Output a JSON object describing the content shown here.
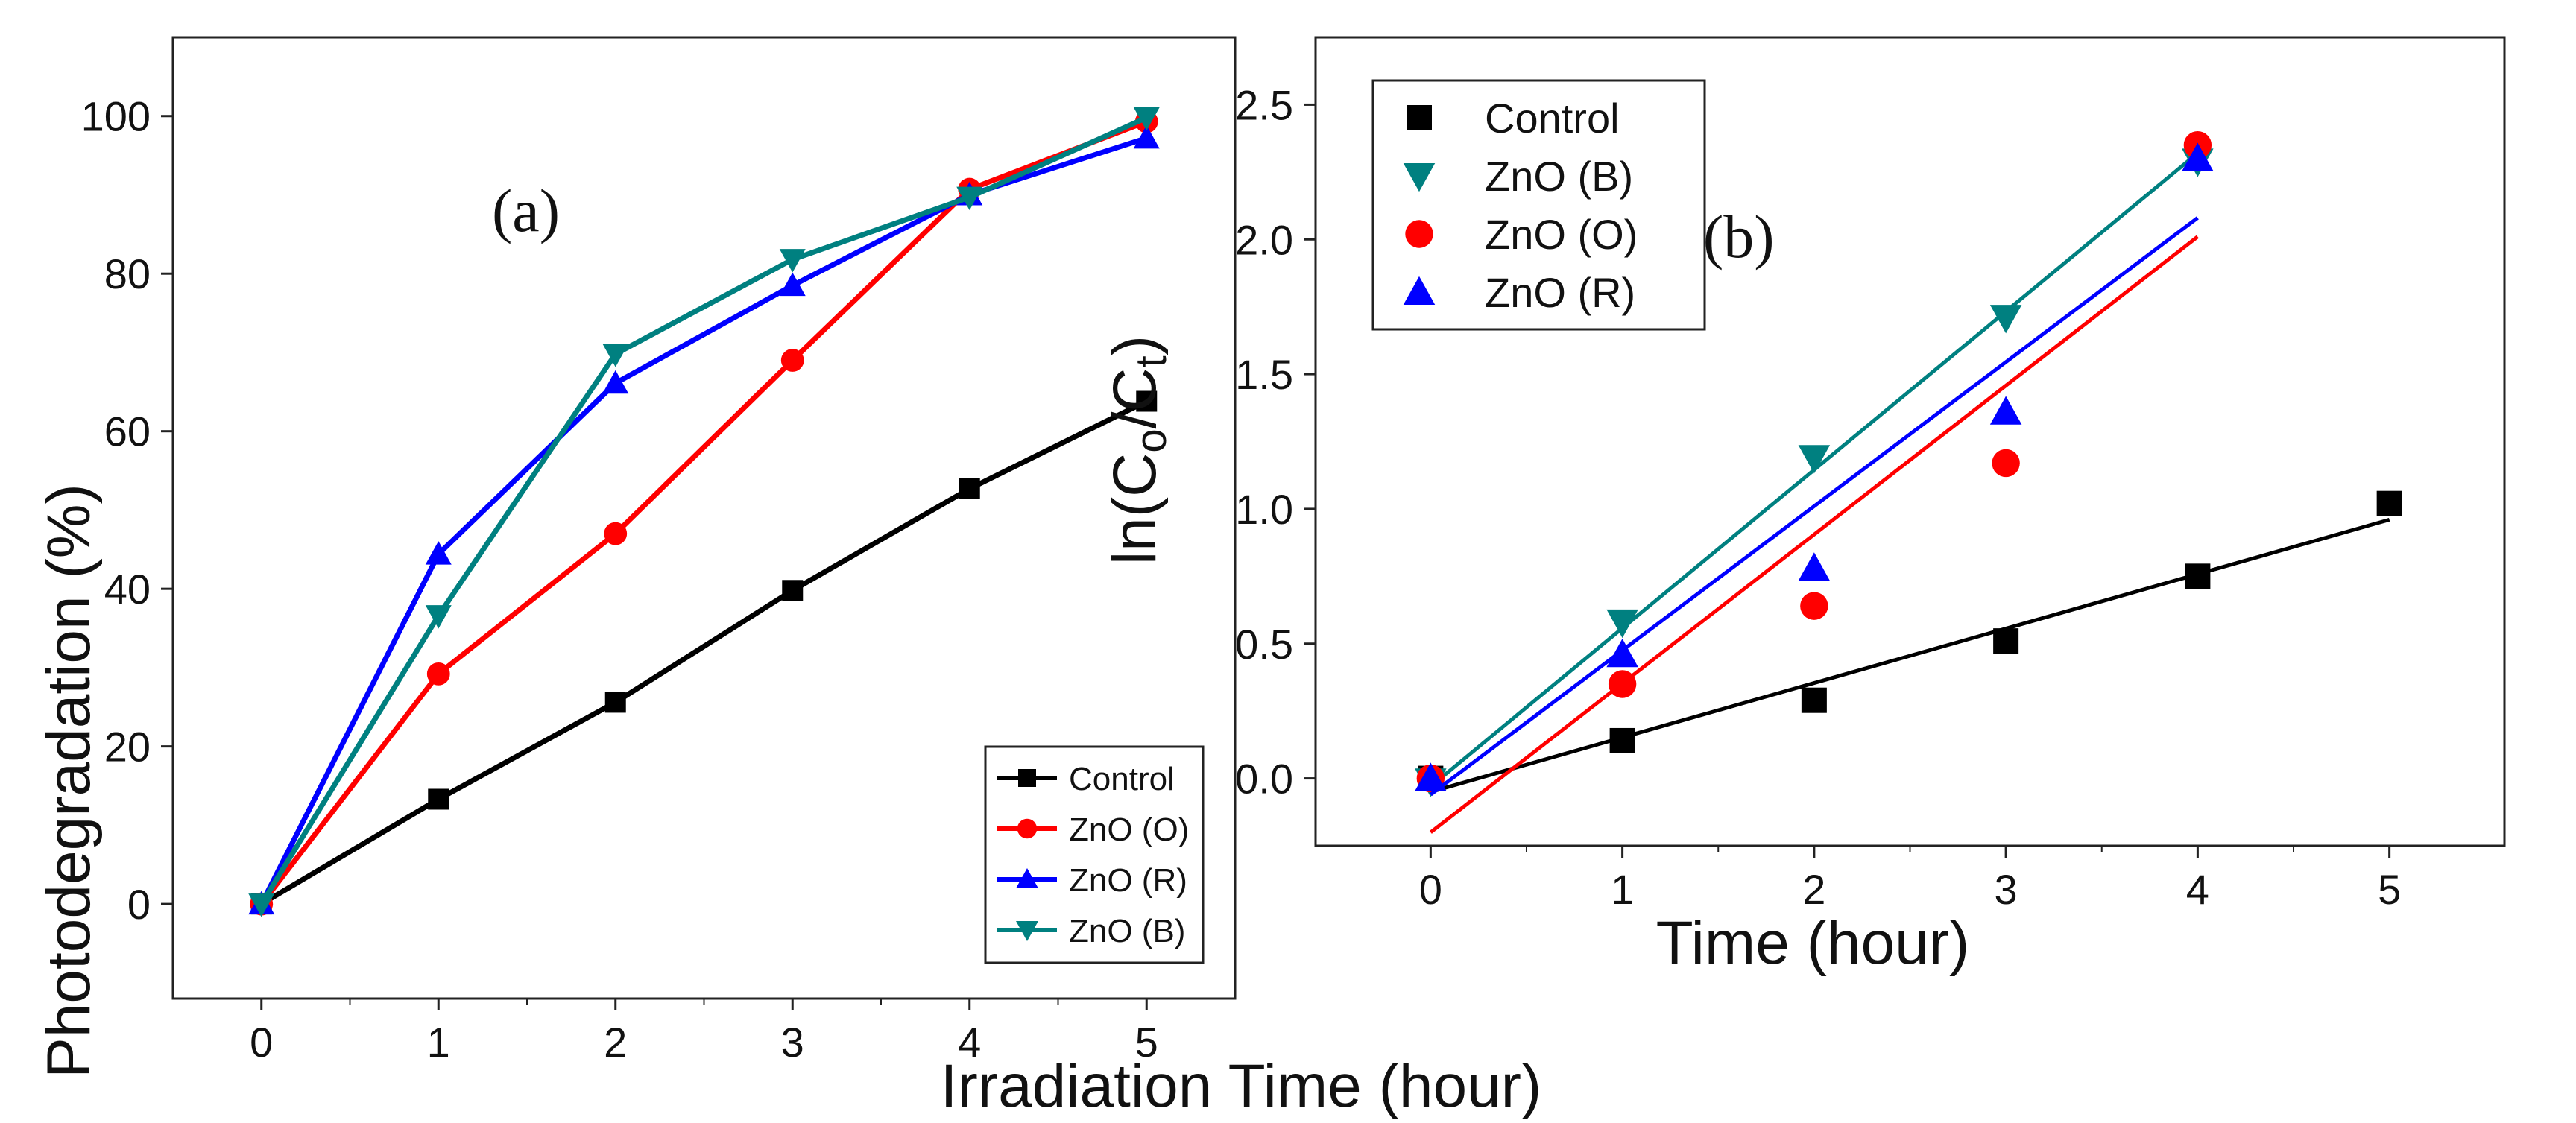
{
  "chart_data": [
    {
      "panel_label": "(a)",
      "type": "line",
      "xlabel": "Irradiation Time (hour)",
      "ylabel": "Photodegradation (%)",
      "xlim": [
        -0.5,
        5.5
      ],
      "ylim": [
        -12,
        110
      ],
      "xticks": [
        0,
        1,
        2,
        3,
        4,
        5
      ],
      "yticks": [
        0,
        20,
        40,
        60,
        80,
        100
      ],
      "grid": false,
      "legend_position": "bottom-right",
      "x": [
        0,
        1,
        2,
        3,
        4,
        5
      ],
      "series": [
        {
          "name": "Control",
          "color": "#000000",
          "marker": "square",
          "values": [
            0,
            13.3,
            25.6,
            39.8,
            52.7,
            63.8
          ]
        },
        {
          "name": "ZnO (O)",
          "color": "#ff0000",
          "marker": "circle",
          "values": [
            0,
            29.2,
            47.0,
            69.0,
            90.7,
            99.3
          ]
        },
        {
          "name": "ZnO (R)",
          "color": "#0000ff",
          "marker": "triangle-up",
          "values": [
            0,
            44.4,
            66.1,
            78.5,
            90.0,
            97.2
          ]
        },
        {
          "name": "ZnO (B)",
          "color": "#008080",
          "marker": "triangle-down",
          "values": [
            0,
            36.6,
            69.8,
            81.8,
            89.7,
            99.8
          ]
        }
      ]
    },
    {
      "panel_label": "(b)",
      "type": "scatter",
      "xlabel": "Time (hour)",
      "ylabel_parts": [
        "ln(C",
        "o",
        "/C",
        "t",
        ")"
      ],
      "xlim": [
        -0.6,
        5.6
      ],
      "ylim": [
        -0.25,
        2.75
      ],
      "xticks": [
        0,
        1,
        2,
        3,
        4,
        5
      ],
      "yticks": [
        "0.0",
        "0.5",
        "1.0",
        "1.5",
        "2.0",
        "2.5"
      ],
      "grid": false,
      "legend_position": "top-left",
      "series": [
        {
          "name": "Control",
          "color": "#000000",
          "marker": "square",
          "x": [
            0,
            1,
            2,
            3,
            4,
            5
          ],
          "values": [
            0.0,
            0.14,
            0.29,
            0.51,
            0.75,
            1.02
          ],
          "fit": [
            [
              0,
              -0.05
            ],
            [
              5,
              0.96
            ]
          ]
        },
        {
          "name": "ZnO (B)",
          "color": "#008080",
          "marker": "triangle-down",
          "x": [
            0,
            1,
            2,
            3,
            4
          ],
          "values": [
            -0.01,
            0.58,
            1.19,
            1.71,
            2.29
          ],
          "fit": [
            [
              0,
              -0.03
            ],
            [
              4,
              2.32
            ]
          ]
        },
        {
          "name": "ZnO (O)",
          "color": "#ff0000",
          "marker": "circle",
          "x": [
            0,
            1,
            2,
            3,
            4
          ],
          "values": [
            0.0,
            0.35,
            0.64,
            1.17,
            2.35
          ],
          "fit": [
            [
              0,
              -0.2
            ],
            [
              4,
              2.01
            ]
          ]
        },
        {
          "name": "ZnO (R)",
          "color": "#0000ff",
          "marker": "triangle-up",
          "x": [
            0,
            1,
            2,
            3,
            4
          ],
          "values": [
            0.0,
            0.46,
            0.78,
            1.36,
            2.3
          ],
          "fit": [
            [
              0,
              -0.06
            ],
            [
              4,
              2.08
            ]
          ]
        }
      ]
    }
  ]
}
